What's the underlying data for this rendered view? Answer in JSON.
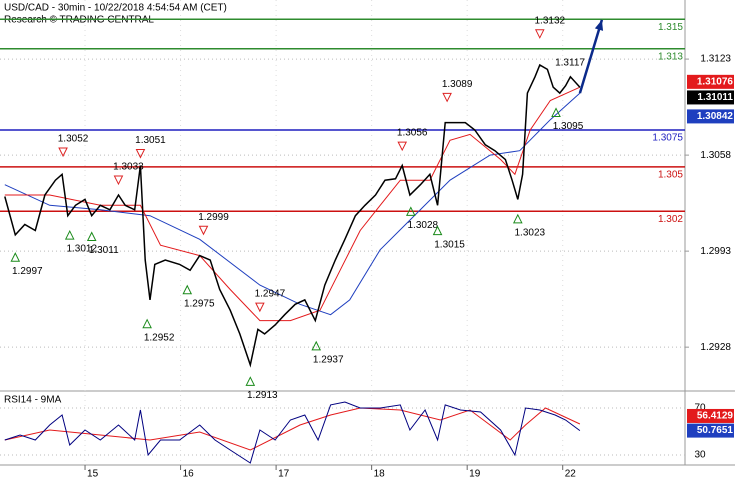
{
  "chart_data": {
    "type": "price-line",
    "title": "USD/CAD - 30min - 10/22/2018 4:54:54 AM (CET)",
    "subtitle": "Research © TRADING CENTRAL",
    "xlim": [
      0.11,
      7.28
    ],
    "xticks": [
      {
        "value": 1,
        "label": "15"
      },
      {
        "value": 2,
        "label": "16"
      },
      {
        "value": 3,
        "label": "17"
      },
      {
        "value": 4,
        "label": "18"
      },
      {
        "value": 5,
        "label": "19"
      },
      {
        "value": 6,
        "label": "22"
      }
    ],
    "ylim": [
      1.2899,
      1.3163
    ],
    "yticks": [
      1.2928,
      1.2993,
      1.3058,
      1.3123
    ],
    "grid": true,
    "price": {
      "color": "#000000",
      "x": [
        0.16,
        0.27,
        0.37,
        0.48,
        0.58,
        0.69,
        0.76,
        0.82,
        0.9,
        1.0,
        1.07,
        1.16,
        1.26,
        1.35,
        1.42,
        1.52,
        1.58,
        1.63,
        1.68,
        1.73,
        1.84,
        1.99,
        2.1,
        2.2,
        2.31,
        2.41,
        2.52,
        2.62,
        2.73,
        2.81,
        2.88,
        2.99,
        3.09,
        3.2,
        3.3,
        3.41,
        3.51,
        3.62,
        3.72,
        3.83,
        3.93,
        4.04,
        4.14,
        4.25,
        4.32,
        4.4,
        4.51,
        4.61,
        4.69,
        4.77,
        4.87,
        4.98,
        5.08,
        5.19,
        5.29,
        5.4,
        5.47,
        5.53,
        5.58,
        5.63,
        5.71,
        5.76,
        5.84,
        5.9,
        5.97,
        6.03,
        6.08,
        6.18
      ],
      "values": [
        1.303,
        1.3004,
        1.3011,
        1.3007,
        1.3031,
        1.3041,
        1.3045,
        1.3017,
        1.3024,
        1.3028,
        1.3017,
        1.3024,
        1.3021,
        1.3031,
        1.3024,
        1.3021,
        1.3051,
        1.2987,
        1.296,
        1.2984,
        1.2987,
        1.2984,
        1.298,
        1.299,
        1.2987,
        1.2967,
        1.2953,
        1.2937,
        1.2916,
        1.294,
        1.2937,
        1.2943,
        1.295,
        1.2957,
        1.296,
        1.2946,
        1.297,
        1.2987,
        1.3001,
        1.3017,
        1.3024,
        1.3031,
        1.3041,
        1.3042,
        1.3051,
        1.3031,
        1.3038,
        1.3045,
        1.3024,
        1.308,
        1.308,
        1.308,
        1.3075,
        1.3065,
        1.3061,
        1.3055,
        1.3041,
        1.3028,
        1.3045,
        1.31,
        1.3111,
        1.3119,
        1.3116,
        1.3104,
        1.31,
        1.3105,
        1.3111,
        1.3104
      ]
    },
    "ma_fast": {
      "color": "#e31a1c",
      "x": [
        0.16,
        0.63,
        1.16,
        1.58,
        1.79,
        2.2,
        2.52,
        2.83,
        3.15,
        3.46,
        3.67,
        3.88,
        4.09,
        4.3,
        4.61,
        4.82,
        5.03,
        5.35,
        5.5,
        5.66,
        5.87,
        6.18
      ],
      "values": [
        1.3031,
        1.3031,
        1.3024,
        1.3024,
        1.2997,
        1.299,
        1.2967,
        1.2946,
        1.2946,
        1.2953,
        1.298,
        1.3007,
        1.3024,
        1.3041,
        1.3041,
        1.3068,
        1.3072,
        1.3055,
        1.3045,
        1.3075,
        1.3095,
        1.3104
      ]
    },
    "ma_slow": {
      "color": "#1f3fbf",
      "x": [
        0.16,
        0.63,
        1.16,
        1.68,
        2.2,
        2.83,
        3.25,
        3.57,
        3.77,
        4.09,
        4.4,
        4.82,
        5.24,
        5.55,
        5.87,
        6.18
      ],
      "values": [
        1.3038,
        1.3024,
        1.3021,
        1.3017,
        1.3001,
        1.297,
        1.2957,
        1.295,
        1.296,
        1.2994,
        1.3014,
        1.3041,
        1.3058,
        1.3061,
        1.3082,
        1.31
      ]
    },
    "forecast": {
      "color": "#0b2a8a",
      "x": [
        6.18,
        6.41
      ],
      "values": [
        1.31,
        1.31495
      ]
    },
    "levels": [
      {
        "value": 1.315,
        "color": "#2e8b2e"
      },
      {
        "value": 1.313,
        "color": "#2e8b2e"
      },
      {
        "value": 1.3075,
        "color": "#1f1fbf"
      },
      {
        "value": 1.305,
        "color": "#cc1111"
      },
      {
        "value": 1.302,
        "color": "#cc1111"
      }
    ],
    "pivots": [
      {
        "x": 0.27,
        "value": 1.2997,
        "dir": "up"
      },
      {
        "x": 0.77,
        "value": 1.3052,
        "dir": "down"
      },
      {
        "x": 0.84,
        "value": 1.3012,
        "dir": "up"
      },
      {
        "x": 1.07,
        "value": 1.3011,
        "dir": "up"
      },
      {
        "x": 1.35,
        "value": 1.3033,
        "dir": "down"
      },
      {
        "x": 1.58,
        "value": 1.3051,
        "dir": "down"
      },
      {
        "x": 1.65,
        "value": 1.2952,
        "dir": "up"
      },
      {
        "x": 2.07,
        "value": 1.2975,
        "dir": "up"
      },
      {
        "x": 2.24,
        "value": 1.2999,
        "dir": "down"
      },
      {
        "x": 2.73,
        "value": 1.2913,
        "dir": "up"
      },
      {
        "x": 2.83,
        "value": 1.2947,
        "dir": "down"
      },
      {
        "x": 3.42,
        "value": 1.2937,
        "dir": "up"
      },
      {
        "x": 4.32,
        "value": 1.3056,
        "dir": "down"
      },
      {
        "x": 4.41,
        "value": 1.3028,
        "dir": "up"
      },
      {
        "x": 4.69,
        "value": 1.3015,
        "dir": "up"
      },
      {
        "x": 4.79,
        "value": 1.3089,
        "dir": "down"
      },
      {
        "x": 5.53,
        "value": 1.3023,
        "dir": "up"
      },
      {
        "x": 5.76,
        "value": 1.3132,
        "dir": "down"
      },
      {
        "x": 5.93,
        "value": 1.3117,
        "dir": "none"
      },
      {
        "x": 5.93,
        "value": 1.3095,
        "dir": "up"
      }
    ],
    "tags": [
      {
        "value": 1.31076,
        "color": "#e31a1c"
      },
      {
        "value": 1.31011,
        "color": "#000000"
      },
      {
        "value": 1.30842,
        "color": "#1f3fbf"
      }
    ],
    "rsi": {
      "title": "RSI14 - 9MA",
      "ylim": [
        21.5,
        83.6
      ],
      "yticks": [
        30,
        70
      ],
      "line": {
        "color": "#000080",
        "x": [
          0.16,
          0.32,
          0.48,
          0.63,
          0.76,
          0.84,
          1.0,
          1.16,
          1.35,
          1.52,
          1.58,
          1.66,
          1.79,
          1.99,
          2.2,
          2.36,
          2.52,
          2.73,
          2.83,
          2.99,
          3.15,
          3.3,
          3.44,
          3.57,
          3.72,
          3.88,
          4.09,
          4.3,
          4.4,
          4.56,
          4.69,
          4.77,
          4.93,
          5.14,
          5.35,
          5.5,
          5.61,
          5.76,
          5.92,
          6.03,
          6.18
        ],
        "values": [
          42.8,
          47.0,
          42.8,
          55.5,
          64.0,
          38.5,
          51.3,
          42.8,
          55.5,
          42.8,
          68.3,
          30.0,
          42.8,
          42.8,
          55.5,
          42.8,
          34.3,
          23.2,
          51.3,
          42.8,
          59.8,
          64.0,
          42.8,
          72.6,
          75.1,
          70.0,
          70.0,
          72.6,
          51.3,
          68.3,
          42.8,
          72.6,
          68.3,
          66.6,
          51.3,
          30.0,
          70.0,
          68.3,
          64.0,
          59.8,
          50.8
        ]
      },
      "ma": {
        "color": "#e31a1c",
        "x": [
          0.16,
          0.63,
          1.16,
          1.68,
          2.2,
          2.73,
          3.25,
          3.57,
          3.88,
          4.3,
          4.72,
          5.03,
          5.45,
          5.61,
          5.82,
          6.18
        ],
        "values": [
          42.8,
          51.3,
          47.0,
          42.8,
          49.6,
          34.3,
          55.5,
          64.0,
          70.0,
          68.3,
          59.8,
          68.3,
          42.8,
          55.5,
          70.0,
          56.4
        ]
      },
      "tags": [
        {
          "value": 56.4129,
          "color": "#e31a1c"
        },
        {
          "value": 50.7651,
          "color": "#1f3fbf"
        }
      ]
    }
  }
}
